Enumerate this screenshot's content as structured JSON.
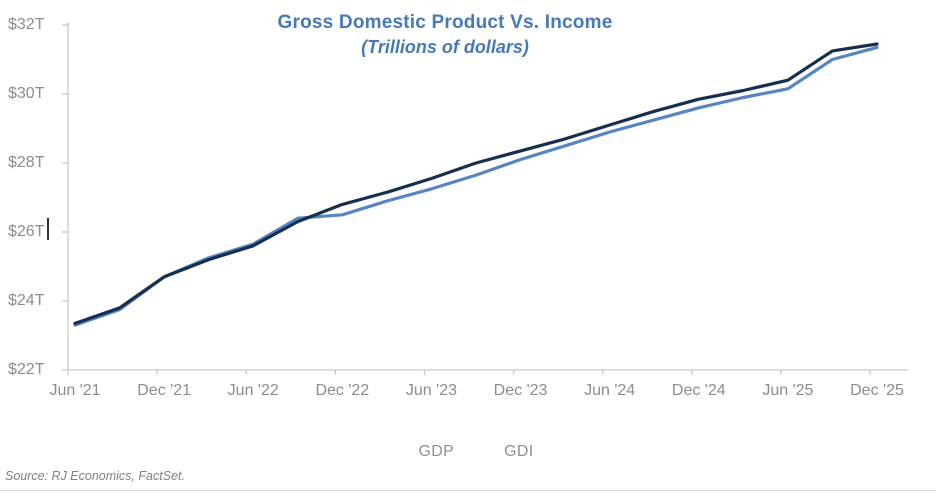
{
  "page": {
    "background": "#ffffff"
  },
  "colors": {
    "title_blue": "#4579B8",
    "gdp_line": "#172F4F",
    "gdi_line": "#5585C2",
    "axis_text": "#8C8C8C",
    "axis_line": "#C9C9C9",
    "source_text": "#808080"
  },
  "footer": {
    "source": "Source: RJ Economics, FactSet."
  },
  "chart_data": {
    "type": "line",
    "title": "Gross Domestic Product Vs. Income",
    "subtitle": "(Trillions of dollars)",
    "units": "trillions of dollars",
    "x": [
      "Jun '21",
      "Sep '21",
      "Dec '21",
      "Mar '22",
      "Jun '22",
      "Sep '22",
      "Dec '22",
      "Mar '23",
      "Jun '23",
      "Sep '23",
      "Dec '23",
      "Mar '24",
      "Jun '24",
      "Sep '24",
      "Dec '24",
      "Mar '25",
      "Jun '25",
      "Sep '25",
      "Dec '25"
    ],
    "x_tick_labels": [
      "Jun '21",
      "Dec '21",
      "Jun '22",
      "Dec '22",
      "Jun '23",
      "Dec '23",
      "Jun '24",
      "Dec '24",
      "Jun '25",
      "Dec '25"
    ],
    "series": [
      {
        "name": "GDP",
        "color": "#172F4F",
        "values": [
          23.35,
          23.8,
          24.7,
          25.2,
          25.6,
          26.3,
          26.8,
          27.15,
          27.55,
          28.0,
          28.35,
          28.7,
          29.1,
          29.5,
          29.85,
          30.1,
          30.4,
          31.25,
          31.45
        ]
      },
      {
        "name": "GDI",
        "color": "#5585C2",
        "values": [
          23.3,
          23.75,
          24.7,
          25.25,
          25.65,
          26.4,
          26.5,
          26.9,
          27.25,
          27.65,
          28.1,
          28.5,
          28.9,
          29.25,
          29.6,
          29.9,
          30.15,
          31.0,
          31.35
        ]
      }
    ],
    "ylim": [
      22,
      32
    ],
    "yticks": [
      22,
      24,
      26,
      28,
      30,
      32
    ],
    "ytick_labels": [
      "$22T",
      "$24T",
      "$26T",
      "$28T",
      "$30T",
      "$32T"
    ],
    "grid": false,
    "legend_position": "bottom"
  }
}
